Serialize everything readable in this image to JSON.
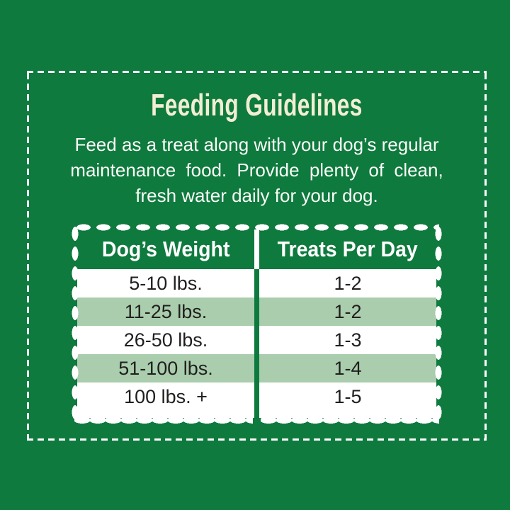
{
  "panel": {
    "title": "Feeding Guidelines",
    "instructions": {
      "lines": [
        "Feed as a treat along with your dog’s regular",
        "maintenance food. Provide plenty of clean,",
        "fresh water daily for your dog."
      ]
    }
  },
  "table": {
    "headers": {
      "weight": "Dog’s Weight",
      "treats": "Treats Per Day"
    },
    "rows": [
      {
        "weight": "5-10 lbs.",
        "treats": "1-2"
      },
      {
        "weight": "11-25 lbs.",
        "treats": "1-2"
      },
      {
        "weight": "26-50 lbs.",
        "treats": "1-3"
      },
      {
        "weight": "51-100 lbs.",
        "treats": "1-4"
      },
      {
        "weight": "100 lbs. +",
        "treats": "1-5"
      }
    ]
  },
  "colors": {
    "background_green": "#0e7a3e",
    "row_alt_green": "#a9cdad",
    "title_cream": "#f2eed4",
    "body_text_white": "#fcfdf8",
    "row_text_black": "#201f1d",
    "border_white": "#ffffff"
  }
}
